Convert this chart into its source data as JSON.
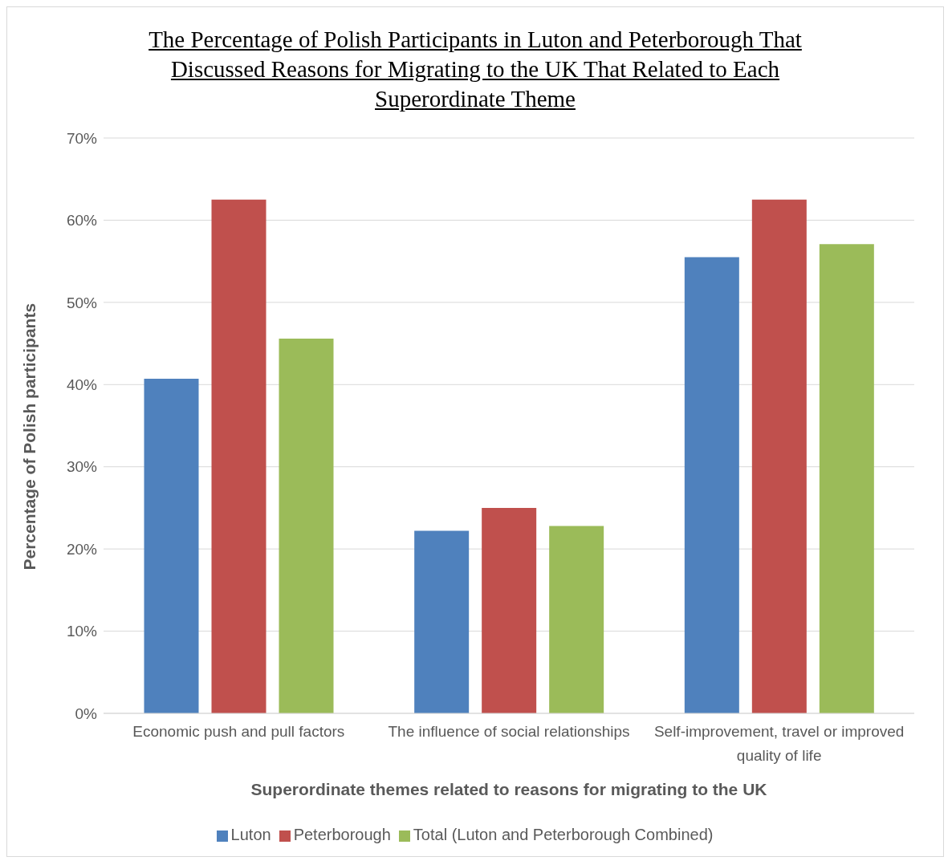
{
  "chart_data": {
    "type": "bar",
    "title": "The Percentage of Polish Participants in Luton and Peterborough That Discussed Reasons for Migrating to the UK That Related to Each Superordinate Theme",
    "xlabel": "Superordinate themes related to reasons for migrating to the UK",
    "ylabel": "Percentage of Polish participants",
    "categories": [
      "Economic push and pull factors",
      "The influence of social relationships",
      "Self-improvement, travel or improved quality of life"
    ],
    "series": [
      {
        "name": "Luton",
        "color": "#4f81bd",
        "values": [
          40.7,
          22.2,
          55.5
        ]
      },
      {
        "name": "Peterborough",
        "color": "#c0504d",
        "values": [
          62.5,
          25.0,
          62.5
        ]
      },
      {
        "name": "Total (Luton and Peterborough Combined)",
        "color": "#9bbb59",
        "values": [
          45.6,
          22.8,
          57.1
        ]
      }
    ],
    "ylim": [
      0,
      70
    ],
    "yticks": [
      {
        "value": 0,
        "label": "0%"
      },
      {
        "value": 10,
        "label": "10%"
      },
      {
        "value": 20,
        "label": "20%"
      },
      {
        "value": 30,
        "label": "30%"
      },
      {
        "value": 40,
        "label": "40%"
      },
      {
        "value": 50,
        "label": "50%"
      },
      {
        "value": 60,
        "label": "60%"
      },
      {
        "value": 70,
        "label": "70%"
      }
    ],
    "grid": "y",
    "legend": "bottom"
  }
}
